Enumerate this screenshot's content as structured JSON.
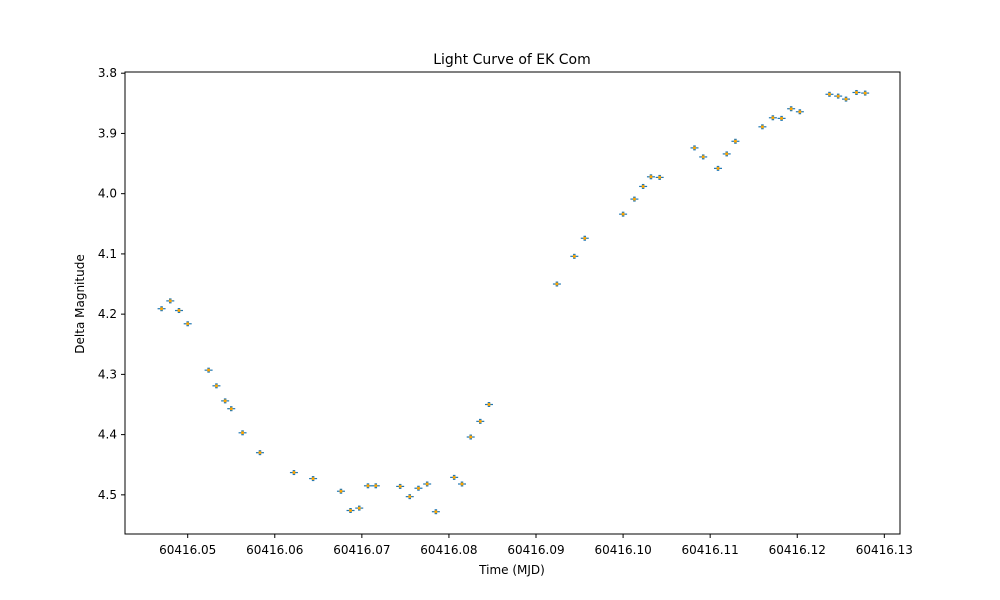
{
  "chart_data": {
    "type": "scatter",
    "title": "Light Curve of EK Com",
    "xlabel": "Time (MJD)",
    "ylabel": "Delta Magnitude",
    "xlim": [
      60416.0428,
      60416.1318
    ],
    "ylim": [
      4.565,
      3.798
    ],
    "y_inverted": true,
    "grid": false,
    "xticks": [
      60416.05,
      60416.06,
      60416.07,
      60416.08,
      60416.09,
      60416.1,
      60416.11,
      60416.12,
      60416.13
    ],
    "xtick_labels": [
      "60416.05",
      "60416.06",
      "60416.07",
      "60416.08",
      "60416.09",
      "60416.10",
      "60416.11",
      "60416.12",
      "60416.13"
    ],
    "yticks": [
      3.8,
      3.9,
      4.0,
      4.1,
      4.2,
      4.3,
      4.4,
      4.5
    ],
    "ytick_labels": [
      "3.8",
      "3.9",
      "4.0",
      "4.1",
      "4.2",
      "4.3",
      "4.4",
      "4.5"
    ],
    "colors": {
      "point": "#ffa500",
      "errorbar": "#1f77b4"
    },
    "series": [
      {
        "x": [
          60416.047,
          60416.048,
          60416.049,
          60416.05,
          60416.0524,
          60416.0533,
          60416.0543,
          60416.055,
          60416.0563,
          60416.0583,
          60416.0622,
          60416.0644,
          60416.0676,
          60416.0687,
          60416.0697,
          60416.0707,
          60416.0716,
          60416.0744,
          60416.0755,
          60416.0765,
          60416.0775,
          60416.0785,
          60416.0806,
          60416.0815,
          60416.0825,
          60416.0836,
          60416.0846,
          60416.0924,
          60416.0944,
          60416.0956,
          60416.1,
          60416.1013,
          60416.1023,
          60416.1032,
          60416.1042,
          60416.1082,
          60416.1092,
          60416.1109,
          60416.1119,
          60416.1129,
          60416.116,
          60416.1172,
          60416.1182,
          60416.1193,
          60416.1203,
          60416.1237,
          60416.1247,
          60416.1256,
          60416.1268,
          60416.1278
        ],
        "y": [
          4.191,
          4.178,
          4.194,
          4.216,
          4.293,
          4.319,
          4.344,
          4.357,
          4.397,
          4.43,
          4.463,
          4.473,
          4.494,
          4.526,
          4.522,
          4.485,
          4.485,
          4.486,
          4.503,
          4.489,
          4.482,
          4.528,
          4.471,
          4.482,
          4.404,
          4.378,
          4.35,
          4.15,
          4.104,
          4.074,
          4.034,
          4.009,
          3.988,
          3.972,
          3.973,
          3.924,
          3.939,
          3.958,
          3.934,
          3.913,
          3.889,
          3.874,
          3.875,
          3.859,
          3.864,
          3.835,
          3.838,
          3.843,
          3.832,
          3.833
        ]
      }
    ]
  }
}
